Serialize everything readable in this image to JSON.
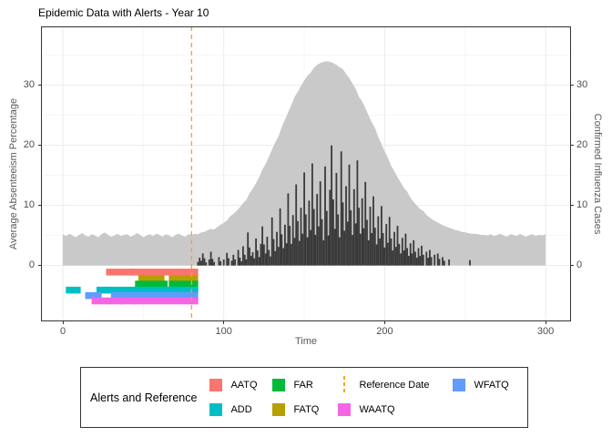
{
  "chart_data": {
    "type": "combo",
    "title": "Epidemic Data with Alerts - Year 10",
    "x_label": "Time",
    "y_left_label": "Average Absenteeism Percentage",
    "y_right_label": "Confirmed Influenza Cases",
    "x_range": [
      -13.6,
      315.8
    ],
    "y_range": [
      -9.3,
      39.8
    ],
    "x_ticks": [
      0,
      100,
      200,
      300
    ],
    "x_minor": [
      50,
      150,
      250
    ],
    "y_ticks": [
      0,
      10,
      20,
      30
    ],
    "y_minor": [
      5,
      15,
      25,
      35
    ],
    "reference_date": {
      "label": "Reference Date",
      "value": 80,
      "color": "#FFA500"
    },
    "colors": {
      "area": "#C9C9C9",
      "bars": "#3A3A3A",
      "grid_major": "#ECECEC",
      "grid_minor": "#F6F6F6",
      "border": "#333333"
    },
    "absenteeism": {
      "name": "Average Absenteeism Percentage",
      "t_start": 0,
      "t_step": 2,
      "v": [
        5.2,
        4.9,
        5.3,
        5.0,
        4.7,
        5.1,
        5.4,
        5.0,
        4.8,
        5.2,
        5.0,
        4.7,
        5.2,
        5.5,
        5.1,
        4.8,
        5.0,
        5.3,
        4.9,
        5.1,
        5.2,
        4.8,
        5.0,
        5.4,
        5.1,
        4.7,
        5.0,
        5.2,
        4.9,
        5.3,
        5.1,
        4.8,
        5.2,
        5.0,
        4.7,
        5.1,
        5.3,
        5.0,
        4.8,
        5.2,
        5.1,
        5.3,
        5.2,
        5.5,
        5.6,
        5.9,
        6.1,
        6.0,
        6.4,
        6.8,
        7.1,
        7.5,
        8.2,
        8.6,
        9.1,
        9.7,
        10.4,
        10.9,
        12.0,
        12.8,
        13.7,
        14.7,
        16.0,
        16.9,
        18.1,
        19.3,
        20.5,
        21.5,
        23.0,
        24.3,
        25.5,
        26.7,
        28.1,
        28.9,
        29.9,
        30.8,
        31.6,
        32.1,
        32.9,
        33.4,
        33.7,
        33.9,
        34.0,
        33.9,
        33.7,
        33.4,
        33.0,
        32.7,
        31.9,
        31.2,
        30.3,
        29.4,
        28.1,
        27.3,
        26.2,
        25.0,
        23.8,
        22.9,
        21.4,
        20.2,
        19.0,
        17.9,
        16.6,
        15.7,
        14.7,
        13.8,
        12.9,
        12.3,
        11.3,
        10.6,
        10.0,
        9.4,
        9.1,
        8.4,
        8.0,
        7.6,
        7.3,
        7.0,
        6.7,
        6.5,
        6.3,
        6.1,
        5.9,
        5.8,
        5.6,
        5.5,
        5.4,
        5.3,
        5.3,
        5.2,
        5.1,
        5.1,
        5.0,
        5.2,
        4.9,
        5.1,
        5.3,
        5.0,
        4.8,
        5.2,
        5.1,
        4.9,
        5.3,
        5.0,
        4.8,
        5.1,
        5.2,
        4.9,
        5.1,
        5.0,
        5.2
      ]
    },
    "cases": {
      "name": "Confirmed Influenza Cases",
      "points": [
        [
          84,
          0.6
        ],
        [
          85,
          1.3
        ],
        [
          86,
          0.8
        ],
        [
          87,
          2.0
        ],
        [
          88,
          1.2
        ],
        [
          89,
          0.5
        ],
        [
          91,
          1.0
        ],
        [
          92,
          2.3
        ],
        [
          93,
          1.1
        ],
        [
          94,
          0.6
        ],
        [
          97,
          1.4
        ],
        [
          98,
          0.7
        ],
        [
          100,
          1.0
        ],
        [
          102,
          2.1
        ],
        [
          103,
          1.2
        ],
        [
          105,
          0.8
        ],
        [
          106,
          1.8
        ],
        [
          107,
          1.0
        ],
        [
          109,
          2.6
        ],
        [
          110,
          1.3
        ],
        [
          111,
          0.7
        ],
        [
          112,
          3.2
        ],
        [
          113,
          1.8
        ],
        [
          114,
          1.0
        ],
        [
          115,
          5.5
        ],
        [
          116,
          3.0
        ],
        [
          117,
          1.6
        ],
        [
          118,
          2.2
        ],
        [
          119,
          1.2
        ],
        [
          120,
          4.5
        ],
        [
          121,
          2.5
        ],
        [
          122,
          1.4
        ],
        [
          123,
          3.6
        ],
        [
          124,
          6.5
        ],
        [
          125,
          3.5
        ],
        [
          126,
          2.0
        ],
        [
          127,
          4.8
        ],
        [
          128,
          2.6
        ],
        [
          129,
          1.5
        ],
        [
          130,
          8.0
        ],
        [
          131,
          4.4
        ],
        [
          132,
          2.4
        ],
        [
          133,
          5.6
        ],
        [
          134,
          3.1
        ],
        [
          135,
          9.5
        ],
        [
          136,
          5.2
        ],
        [
          137,
          2.9
        ],
        [
          138,
          6.8
        ],
        [
          139,
          3.7
        ],
        [
          140,
          12.0
        ],
        [
          141,
          6.6
        ],
        [
          142,
          3.6
        ],
        [
          143,
          8.4
        ],
        [
          144,
          4.6
        ],
        [
          145,
          13.5
        ],
        [
          146,
          7.4
        ],
        [
          147,
          4.1
        ],
        [
          148,
          9.6
        ],
        [
          149,
          5.3
        ],
        [
          150,
          15.5
        ],
        [
          151,
          8.5
        ],
        [
          152,
          4.7
        ],
        [
          153,
          10.8
        ],
        [
          154,
          5.9
        ],
        [
          155,
          17.0
        ],
        [
          156,
          9.4
        ],
        [
          157,
          5.1
        ],
        [
          158,
          11.9
        ],
        [
          159,
          6.5
        ],
        [
          160,
          14.0
        ],
        [
          161,
          7.7
        ],
        [
          162,
          4.2
        ],
        [
          163,
          16.5
        ],
        [
          164,
          9.1
        ],
        [
          165,
          5.0
        ],
        [
          166,
          12.6
        ],
        [
          167,
          20.0
        ],
        [
          168,
          11.0
        ],
        [
          169,
          6.1
        ],
        [
          170,
          15.4
        ],
        [
          171,
          8.5
        ],
        [
          172,
          4.7
        ],
        [
          173,
          19.0
        ],
        [
          174,
          10.5
        ],
        [
          175,
          5.8
        ],
        [
          176,
          13.2
        ],
        [
          177,
          7.3
        ],
        [
          178,
          16.8
        ],
        [
          179,
          9.2
        ],
        [
          180,
          5.1
        ],
        [
          181,
          12.7
        ],
        [
          182,
          7.0
        ],
        [
          183,
          17.5
        ],
        [
          184,
          9.6
        ],
        [
          185,
          5.3
        ],
        [
          186,
          11.2
        ],
        [
          187,
          6.2
        ],
        [
          188,
          13.9
        ],
        [
          189,
          7.6
        ],
        [
          190,
          4.2
        ],
        [
          191,
          9.8
        ],
        [
          192,
          5.4
        ],
        [
          193,
          11.5
        ],
        [
          194,
          6.3
        ],
        [
          195,
          3.5
        ],
        [
          196,
          8.2
        ],
        [
          197,
          4.5
        ],
        [
          198,
          9.9
        ],
        [
          199,
          5.4
        ],
        [
          200,
          3.0
        ],
        [
          201,
          6.9
        ],
        [
          202,
          3.8
        ],
        [
          203,
          8.1
        ],
        [
          204,
          4.5
        ],
        [
          205,
          2.5
        ],
        [
          206,
          5.6
        ],
        [
          207,
          3.1
        ],
        [
          208,
          6.6
        ],
        [
          209,
          3.6
        ],
        [
          210,
          2.0
        ],
        [
          211,
          4.6
        ],
        [
          212,
          2.5
        ],
        [
          213,
          5.3
        ],
        [
          214,
          2.9
        ],
        [
          215,
          1.6
        ],
        [
          216,
          3.7
        ],
        [
          217,
          2.0
        ],
        [
          218,
          4.2
        ],
        [
          219,
          2.3
        ],
        [
          220,
          1.3
        ],
        [
          221,
          2.9
        ],
        [
          222,
          1.6
        ],
        [
          223,
          3.3
        ],
        [
          224,
          1.8
        ],
        [
          226,
          2.3
        ],
        [
          227,
          1.3
        ],
        [
          228,
          2.6
        ],
        [
          229,
          1.4
        ],
        [
          231,
          1.8
        ],
        [
          233,
          2.0
        ],
        [
          234,
          1.1
        ],
        [
          236,
          1.4
        ],
        [
          237,
          0.8
        ],
        [
          240,
          1.0
        ],
        [
          253,
          0.9
        ]
      ]
    },
    "alerts": [
      {
        "name": "AATQ",
        "color": "#F8766D",
        "row": -1.1,
        "segments": [
          [
            29,
            42
          ],
          [
            44,
            82
          ]
        ]
      },
      {
        "name": "FATQ",
        "color": "#B79F00",
        "row": -2.2,
        "segments": [
          [
            49,
            61
          ],
          [
            68,
            82
          ]
        ]
      },
      {
        "name": "FAR",
        "color": "#00BA38",
        "row": -3.1,
        "segments": [
          [
            47,
            63
          ],
          [
            68,
            82
          ]
        ]
      },
      {
        "name": "ADD",
        "color": "#00BFC4",
        "row": -4.1,
        "segments": [
          [
            4,
            9
          ],
          [
            23,
            28
          ],
          [
            30,
            45
          ],
          [
            46,
            82
          ]
        ]
      },
      {
        "name": "WFATQ",
        "color": "#619CFF",
        "row": -5.0,
        "segments": [
          [
            16,
            22
          ],
          [
            32,
            38
          ],
          [
            40,
            44
          ],
          [
            47,
            82
          ]
        ]
      },
      {
        "name": "WAATQ",
        "color": "#F564E3",
        "row": -5.9,
        "segments": [
          [
            20,
            26
          ],
          [
            29,
            35
          ],
          [
            37,
            43
          ],
          [
            46,
            82
          ]
        ]
      }
    ],
    "legend": {
      "title": "Alerts and Reference",
      "position": "bottom",
      "columns": [
        [
          {
            "label": "AATQ",
            "swatch": "square",
            "color": "#F8766D"
          },
          {
            "label": "ADD",
            "swatch": "square",
            "color": "#00BFC4"
          }
        ],
        [
          {
            "label": "FAR",
            "swatch": "square",
            "color": "#00BA38"
          },
          {
            "label": "FATQ",
            "swatch": "square",
            "color": "#B79F00"
          }
        ],
        [
          {
            "label": "Reference Date",
            "swatch": "dashed-line",
            "color": "#FFA500"
          },
          {
            "label": "WAATQ",
            "swatch": "square",
            "color": "#F564E3"
          }
        ],
        [
          {
            "label": "WFATQ",
            "swatch": "square",
            "color": "#619CFF"
          }
        ]
      ]
    }
  }
}
